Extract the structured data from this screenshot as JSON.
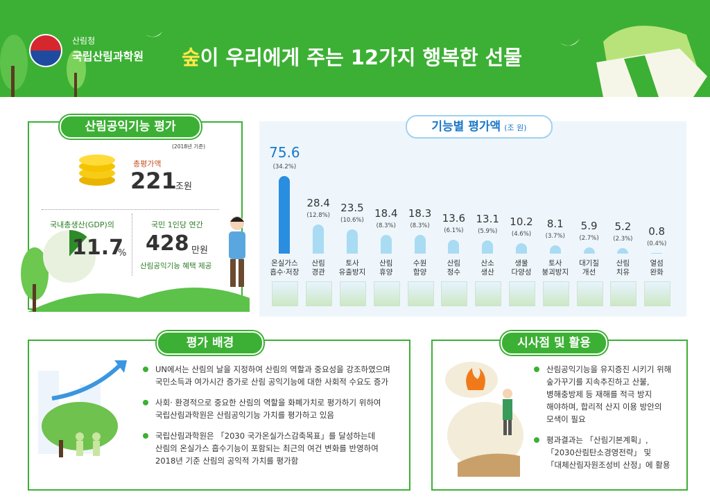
{
  "header": {
    "agency": "산림청",
    "institute": "국립산림과학원",
    "title_highlight": "숲",
    "title_rest": "이 우리에게 주는 12가지 행복한 선물"
  },
  "summary": {
    "title": "산림공익기능 평가",
    "note": "(2018년 기준)",
    "total_label": "총평가액",
    "total_value": 221,
    "total_unit": "조원",
    "gdp_label": "국내총생산(GDP)의",
    "gdp_value": 11.7,
    "gdp_unit": "%",
    "per_capita_label": "국민 1인당 연간",
    "per_capita_value": 428,
    "per_capita_unit": "만원",
    "per_capita_caption": "산림공익기능 혜택 제공"
  },
  "chart_data": {
    "type": "bar",
    "title": "기능별 평가액",
    "unit": "(조 원)",
    "categories": [
      "온실가스\n흡수·저장",
      "산림\n경관",
      "토사\n유출방지",
      "산림\n휴양",
      "수원\n함양",
      "산림\n정수",
      "산소\n생산",
      "생물\n다양성",
      "토사\n붕괴방지",
      "대기질\n개선",
      "산림\n치유",
      "열섬\n완화"
    ],
    "values": [
      75.6,
      28.4,
      23.5,
      18.4,
      18.3,
      13.6,
      13.1,
      10.2,
      8.1,
      5.9,
      5.2,
      0.8
    ],
    "share_labels": [
      "(34.2%)",
      "(12.8%)",
      "(10.6%)",
      "(8.3%)",
      "(8.3%)",
      "(6.1%)",
      "(5.9%)",
      "(4.6%)",
      "(3.7%)",
      "(2.7%)",
      "(2.3%)",
      "(0.4%)"
    ],
    "ylim": [
      0,
      80
    ],
    "color": "#a9dbf3",
    "highlight_color": "#2a8ee0"
  },
  "background": {
    "title": "평가 배경",
    "bullets": [
      "UN에서는 산림의 날을 지정하여 산림의 역할과 중요성을 강조하였으며\n국민소득과 여가시간 증가로 산림 공익기능에 대한 사회적 수요도 증가",
      "사회· 환경적으로 중요한 산림의 역할을 화폐가치로 평가하기 위하여\n국립산림과학원은 산림공익기능 가치를 평가하고 있음",
      "국립산림과학원은 「2030 국가온실가스감축목표」를 달성하는데\n산림의 온실가스 흡수기능이 포함되는 최근의 여건 변화를 반영하여\n2018년 기준 산림의 공익적 가치를 평가함"
    ]
  },
  "implications": {
    "title": "시사점 및 활용",
    "bullets": [
      "산림공익기능을 유지증진 시키기 위해\n숲가꾸기를 지속추진하고 산불,\n병해충방제 등 재해를 적극 방지\n해야하며, 합리적 산지 이용 방안의\n모색이 필요",
      "평과결과는 「산림기본계획」,\n「2030산림탄소경영전략」 및\n「대체산림자원조성비 산정」에 활용"
    ]
  }
}
